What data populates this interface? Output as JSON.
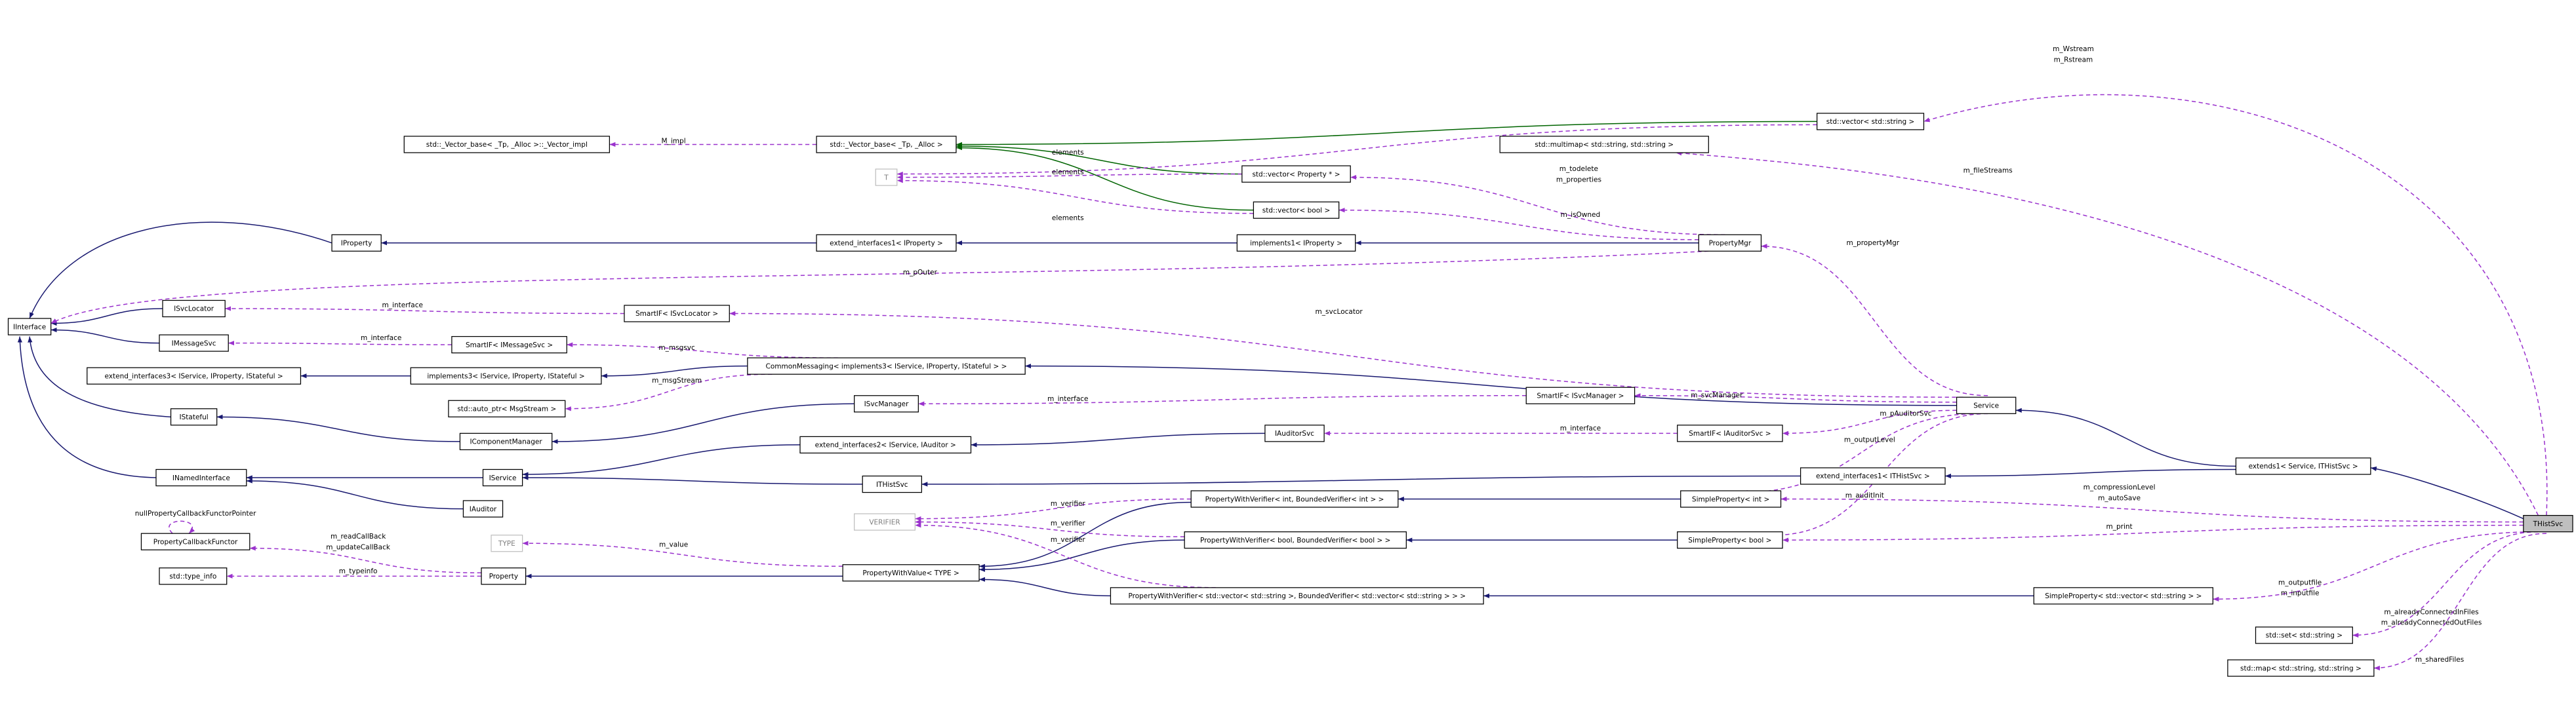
{
  "nodes": [
    {
      "label": "IInterface"
    },
    {
      "label": "IProperty"
    },
    {
      "label": "ISvcLocator"
    },
    {
      "label": "IMessageSvc"
    },
    {
      "label": "extend_interfaces3< IService, IProperty, IStateful >"
    },
    {
      "label": "IStateful"
    },
    {
      "label": "INamedInterface"
    },
    {
      "label": "IAuditor"
    },
    {
      "label": "IService"
    },
    {
      "label": "PropertyCallbackFunctor"
    },
    {
      "label": "std::type_info"
    },
    {
      "label": "Property"
    },
    {
      "label": "TYPE"
    },
    {
      "label": "std::_Vector_base< _Tp, _Alloc >::_Vector_impl"
    },
    {
      "label": "std::_Vector_base< _Tp, _Alloc >"
    },
    {
      "label": "T"
    },
    {
      "label": "extend_interfaces1< IProperty >"
    },
    {
      "label": "SmartIF< ISvcLocator >"
    },
    {
      "label": "SmartIF< IMessageSvc >"
    },
    {
      "label": "implements3< IService, IProperty, IStateful >"
    },
    {
      "label": "std::auto_ptr< MsgStream >"
    },
    {
      "label": "IComponentManager"
    },
    {
      "label": "CommonMessaging< implements3< IService, IProperty, IStateful > >"
    },
    {
      "label": "ISvcManager"
    },
    {
      "label": "extend_interfaces2< IService, IAuditor >"
    },
    {
      "label": "IAuditorSvc"
    },
    {
      "label": "ITHistSvc"
    },
    {
      "label": "VERIFIER"
    },
    {
      "label": "PropertyWithValue< TYPE >"
    },
    {
      "label": "std::vector< Property * >"
    },
    {
      "label": "std::vector< bool >"
    },
    {
      "label": "implements1< IProperty >"
    },
    {
      "label": "std::multimap< std::string, std::string >"
    },
    {
      "label": "std::vector< std::string >"
    },
    {
      "label": "PropertyMgr"
    },
    {
      "label": "SmartIF< ISvcManager >"
    },
    {
      "label": "SmartIF< IAuditorSvc >"
    },
    {
      "label": "Service"
    },
    {
      "label": "extend_interfaces1< ITHistSvc >"
    },
    {
      "label": "extends1< Service, ITHistSvc >"
    },
    {
      "label": "PropertyWithVerifier< int, BoundedVerifier< int > >"
    },
    {
      "label": "PropertyWithVerifier< bool, BoundedVerifier< bool > >"
    },
    {
      "label": "PropertyWithVerifier< std::vector< std::string >, BoundedVerifier< std::vector< std::string > > >"
    },
    {
      "label": "SimpleProperty< int >"
    },
    {
      "label": "SimpleProperty< bool >"
    },
    {
      "label": "SimpleProperty< std::vector< std::string > >"
    },
    {
      "label": "std::set< std::string >"
    },
    {
      "label": "std::map< std::string, std::string >"
    },
    {
      "label": "THistSvc"
    }
  ],
  "edges": [
    {
      "labels": [
        "m_Wstream",
        "m_Rstream"
      ]
    },
    {
      "labels": [
        "M_impl"
      ]
    },
    {
      "labels": [
        "elements"
      ]
    },
    {
      "labels": [
        "elements"
      ]
    },
    {
      "labels": [
        "elements"
      ]
    },
    {
      "labels": [
        "m_fileStreams"
      ]
    },
    {
      "labels": [
        "m_todelete",
        "m_properties"
      ]
    },
    {
      "labels": [
        "m_isOwned"
      ]
    },
    {
      "labels": [
        "m_propertyMgr"
      ]
    },
    {
      "labels": [
        "m_pOuter"
      ]
    },
    {
      "labels": [
        "m_svcLocator"
      ]
    },
    {
      "labels": [
        "m_interface"
      ]
    },
    {
      "labels": [
        "m_interface"
      ]
    },
    {
      "labels": [
        "m_msgsvc"
      ]
    },
    {
      "labels": [
        "m_msgStream"
      ]
    },
    {
      "labels": [
        "m_interface"
      ]
    },
    {
      "labels": [
        "m_svcManager"
      ]
    },
    {
      "labels": [
        "m_pAuditorSvc"
      ]
    },
    {
      "labels": [
        "m_interface"
      ]
    },
    {
      "labels": [
        "m_outputLevel"
      ]
    },
    {
      "labels": [
        "m_auditInit"
      ]
    },
    {
      "labels": [
        "m_compressionLevel",
        "m_autoSave"
      ]
    },
    {
      "labels": [
        "m_print"
      ]
    },
    {
      "labels": [
        "m_verifier"
      ]
    },
    {
      "labels": [
        "m_verifier"
      ]
    },
    {
      "labels": [
        "m_verifier"
      ]
    },
    {
      "labels": [
        "m_readCallBack",
        "m_updateCallBack"
      ]
    },
    {
      "labels": [
        "m_value"
      ]
    },
    {
      "labels": [
        "m_typeinfo"
      ]
    },
    {
      "labels": [
        "m_outputfile",
        "m_inputfile"
      ]
    },
    {
      "labels": [
        "m_alreadyConnectedInFiles",
        "m_alreadyConnectedOutFiles"
      ]
    },
    {
      "labels": [
        "m_sharedFiles"
      ]
    },
    {
      "labels": [
        "nullPropertyCallbackFunctorPointer"
      ]
    }
  ]
}
